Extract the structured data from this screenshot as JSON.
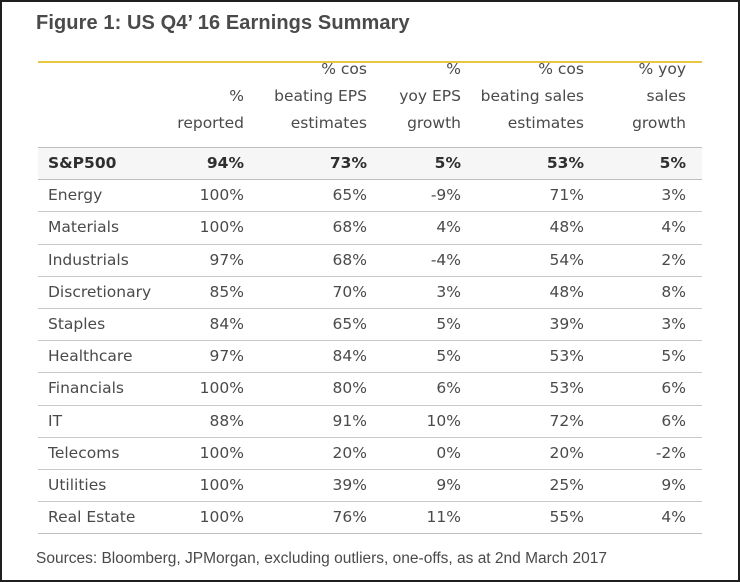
{
  "title": "Figure 1: US Q4’ 16 Earnings Summary",
  "columns": [
    "",
    "%\nreported",
    "% cos\nbeating EPS\nestimates",
    "%\nyoy EPS\ngrowth",
    "% cos\nbeating sales\nestimates",
    "% yoy\nsales\ngrowth"
  ],
  "rows": [
    [
      "S&P500",
      "94%",
      "73%",
      "5%",
      "53%",
      "5%"
    ],
    [
      "Energy",
      "100%",
      "65%",
      "-9%",
      "71%",
      "3%"
    ],
    [
      "Materials",
      "100%",
      "68%",
      "4%",
      "48%",
      "4%"
    ],
    [
      "Industrials",
      "97%",
      "68%",
      "-4%",
      "54%",
      "2%"
    ],
    [
      "Discretionary",
      "85%",
      "70%",
      "3%",
      "48%",
      "8%"
    ],
    [
      "Staples",
      "84%",
      "65%",
      "5%",
      "39%",
      "3%"
    ],
    [
      "Healthcare",
      "97%",
      "84%",
      "5%",
      "53%",
      "5%"
    ],
    [
      "Financials",
      "100%",
      "80%",
      "6%",
      "53%",
      "6%"
    ],
    [
      "IT",
      "88%",
      "91%",
      "10%",
      "72%",
      "6%"
    ],
    [
      "Telecoms",
      "100%",
      "20%",
      "0%",
      "20%",
      "-2%"
    ],
    [
      "Utilities",
      "100%",
      "39%",
      "9%",
      "25%",
      "9%"
    ],
    [
      "Real Estate",
      "100%",
      "76%",
      "11%",
      "55%",
      "4%"
    ]
  ],
  "source": "Sources: Bloomberg, JPMorgan, excluding outliers, one-offs, as at 2nd March 2017",
  "colors": {
    "accent_rule": "#e8c840",
    "text": "#4a4a4a",
    "border": "#1f1f1f"
  }
}
